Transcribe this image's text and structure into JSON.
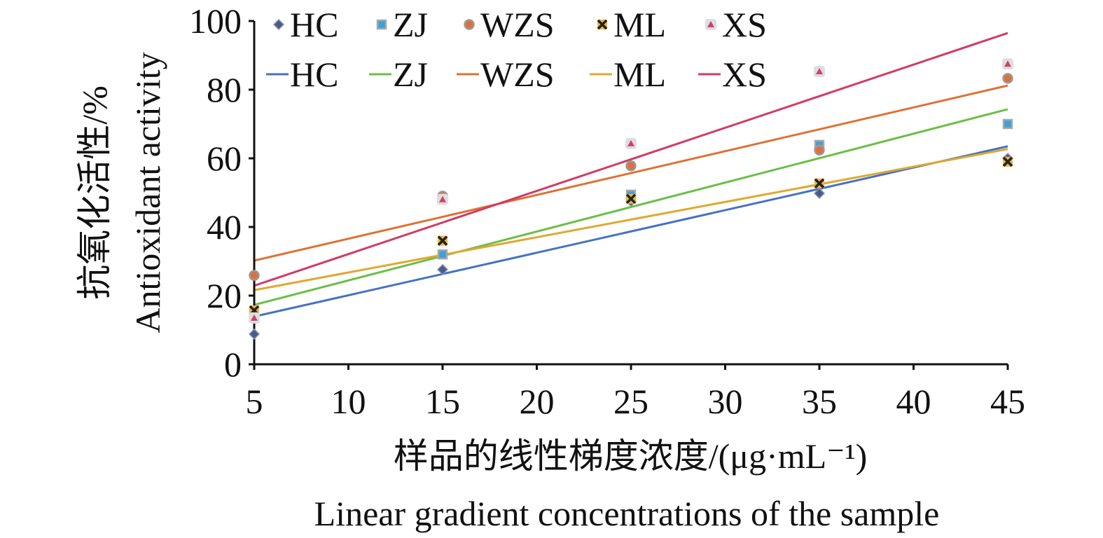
{
  "chart_data": {
    "type": "scatter",
    "ylabel_cn": "抗氧化活性/%",
    "ylabel_en": "Antioxidant activity",
    "xlabel_cn": "样品的线性梯度浓度/(μg·mL⁻¹)",
    "xlabel_en": "Linear gradient concentrations of the sample",
    "xlim": [
      5,
      45
    ],
    "ylim": [
      0,
      100
    ],
    "x_ticks": [
      "5",
      "10",
      "15",
      "20",
      "25",
      "30",
      "35",
      "40",
      "45"
    ],
    "y_ticks": [
      "0",
      "20",
      "40",
      "60",
      "80",
      "100"
    ],
    "x": [
      5,
      15,
      25,
      35,
      45
    ],
    "legend_placement": "top-left inside",
    "series": [
      {
        "name": "HC",
        "marker": "diamond",
        "marker_color": "#4a5a8c",
        "line_color": "#4472c4",
        "values": [
          8.8,
          27.6,
          47.5,
          49.8,
          60.0
        ],
        "trend": [
          13.9,
          63.5
        ]
      },
      {
        "name": "ZJ",
        "marker": "square",
        "marker_color": "#3fa0d8",
        "line_color": "#6abf45",
        "values": [
          15.3,
          32.0,
          49.4,
          63.9,
          70.0
        ],
        "trend": [
          17.3,
          74.3
        ]
      },
      {
        "name": "WZS",
        "marker": "circle",
        "marker_color": "#e0703a",
        "line_color": "#e07030",
        "values": [
          25.9,
          49.0,
          57.8,
          62.4,
          83.3
        ],
        "trend": [
          30.2,
          81.2
        ]
      },
      {
        "name": "ML",
        "marker": "x",
        "marker_color": "#222222",
        "line_color": "#e0a830",
        "values": [
          15.7,
          36.0,
          48.2,
          52.7,
          59.0
        ],
        "trend": [
          21.6,
          62.7
        ]
      },
      {
        "name": "XS",
        "marker": "triangle",
        "marker_color": "#d0406a",
        "line_color": "#d23a64",
        "values": [
          13.5,
          48.0,
          64.3,
          85.3,
          87.5
        ],
        "trend": [
          22.9,
          96.5
        ]
      }
    ]
  }
}
